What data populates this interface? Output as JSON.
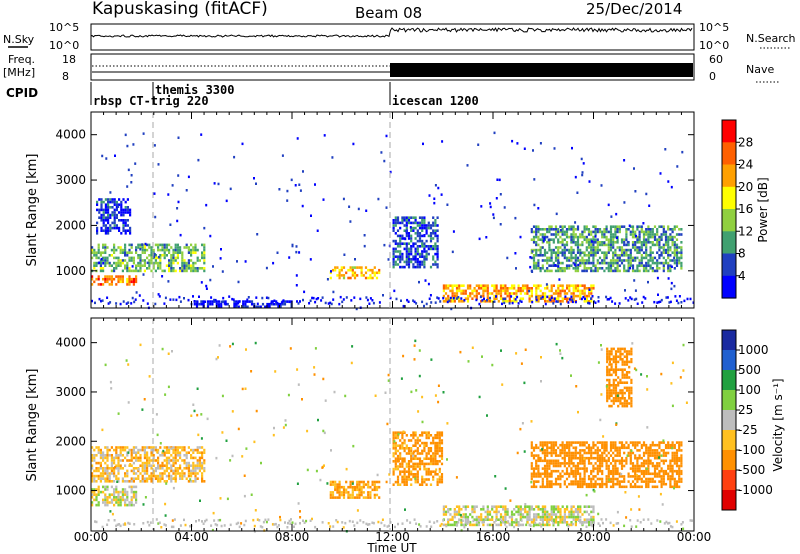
{
  "header": {
    "station": "Kapuskasing (fitACF)",
    "beam": "Beam 08",
    "date": "25/Dec/2014"
  },
  "top_panels": {
    "nsky_label": "N.Sky",
    "nsky_ticks": [
      "10^5",
      "10^0"
    ],
    "nsearch_label": "N.Search",
    "freq_label_1": "Freq.",
    "freq_label_2": "[MHz]",
    "freq_ticks": [
      "18",
      "8"
    ],
    "nave_ticks": [
      "60",
      "0"
    ],
    "nave_label": "Nave",
    "cpid_label": "CPID",
    "cpid_entries": [
      {
        "name": "rbsp CT-trig 220",
        "start_hour": 0
      },
      {
        "name": "themis 3300",
        "start_hour": 2.45
      },
      {
        "name": "icescan 1200",
        "start_hour": 12.0
      }
    ]
  },
  "colors": {
    "power_scale": [
      "#0000ff",
      "#2040c0",
      "#40a070",
      "#90d040",
      "#ffff00",
      "#ffa000",
      "#ff6000",
      "#ff0000"
    ],
    "velocity_scale": [
      "#1a2aa0",
      "#2060d0",
      "#20a040",
      "#80d040",
      "#bdbdbd",
      "#ffc020",
      "#ff9000",
      "#ff4010",
      "#e00000"
    ]
  },
  "chart_data": [
    {
      "type": "heatmap",
      "title": "Power",
      "ylabel": "Slant Range [km]",
      "xlabel": "",
      "xlim": [
        0,
        24
      ],
      "ylim": [
        180,
        4500
      ],
      "yticks": [
        "1000",
        "2000",
        "3000",
        "4000"
      ],
      "colorbar_label": "Power [dB]",
      "colorbar_ticks": [
        "4",
        "8",
        "12",
        "16",
        "20",
        "24",
        "28"
      ],
      "regions": [
        {
          "t0": 0.0,
          "t1": 1.8,
          "r0": 700,
          "r1": 900,
          "value": 26
        },
        {
          "t0": 0.0,
          "t1": 4.5,
          "r0": 1000,
          "r1": 1600,
          "value": 14
        },
        {
          "t0": 0.2,
          "t1": 1.6,
          "r0": 1800,
          "r1": 2600,
          "value": 6
        },
        {
          "t0": 4.0,
          "t1": 8.0,
          "r0": 200,
          "r1": 350,
          "value": 5
        },
        {
          "t0": 9.5,
          "t1": 11.5,
          "r0": 850,
          "r1": 1100,
          "value": 22
        },
        {
          "t0": 12.0,
          "t1": 13.8,
          "r0": 1100,
          "r1": 2200,
          "value": 8
        },
        {
          "t0": 14.0,
          "t1": 20.0,
          "r0": 300,
          "r1": 700,
          "value": 24
        },
        {
          "t0": 17.5,
          "t1": 23.5,
          "r0": 1000,
          "r1": 2000,
          "value": 12
        }
      ]
    },
    {
      "type": "heatmap",
      "title": "Velocity",
      "ylabel": "Slant Range [km]",
      "xlabel": "Time UT",
      "xlim": [
        0,
        24
      ],
      "ylim": [
        180,
        4500
      ],
      "xticks": [
        "00:00",
        "04:00",
        "08:00",
        "12:00",
        "16:00",
        "20:00",
        "00:00"
      ],
      "yticks": [
        "1000",
        "2000",
        "3000",
        "4000"
      ],
      "colorbar_label": "Velocity [m s⁻¹]",
      "colorbar_ticks": [
        "1000",
        "500",
        "100",
        "25",
        "-25",
        "-100",
        "-500",
        "-1000"
      ],
      "regions": [
        {
          "t0": 0.0,
          "t1": 1.8,
          "r0": 700,
          "r1": 1100,
          "value": 0
        },
        {
          "t0": 0.0,
          "t1": 4.5,
          "r0": 1200,
          "r1": 1900,
          "value": -60
        },
        {
          "t0": 9.5,
          "t1": 11.5,
          "r0": 850,
          "r1": 1200,
          "value": -120
        },
        {
          "t0": 12.0,
          "t1": 14.0,
          "r0": 1100,
          "r1": 2200,
          "value": -150
        },
        {
          "t0": 14.0,
          "t1": 20.0,
          "r0": 300,
          "r1": 700,
          "value": 0
        },
        {
          "t0": 17.5,
          "t1": 23.5,
          "r0": 1100,
          "r1": 2000,
          "value": -200
        },
        {
          "t0": 20.5,
          "t1": 21.5,
          "r0": 2700,
          "r1": 3900,
          "value": -400
        }
      ]
    }
  ]
}
